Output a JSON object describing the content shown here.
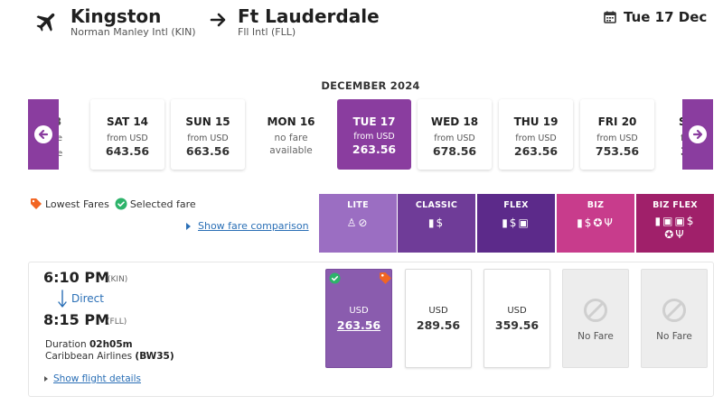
{
  "header": {
    "origin_city": "Kingston",
    "origin_airport": "Norman Manley Intl (KIN)",
    "dest_city": "Ft Lauderdale",
    "dest_airport": "Fll Intl (FLL)",
    "date": "Tue 17 Dec",
    "icons": {
      "plane": "plane-icon",
      "arrow": "arrow-right-icon",
      "calendar": "calendar-icon"
    }
  },
  "carousel": {
    "month": "DECEMBER 2024",
    "prev_partial": {
      "name": "3",
      "line": "e",
      "line2": "le"
    },
    "next_partial": {
      "name": "S",
      "line": "f",
      "line2": "3"
    },
    "days": [
      {
        "name": "SAT 14",
        "from": "from USD",
        "price": "643.56"
      },
      {
        "name": "SUN 15",
        "from": "from USD",
        "price": "663.56"
      },
      {
        "name": "MON 16",
        "nofare": "no fare",
        "nofare2": "available"
      },
      {
        "name": "TUE 17",
        "from": "from USD",
        "price": "263.56"
      },
      {
        "name": "WED 18",
        "from": "from USD",
        "price": "678.56"
      },
      {
        "name": "THU 19",
        "from": "from USD",
        "price": "263.56"
      },
      {
        "name": "FRI 20",
        "from": "from USD",
        "price": "753.56"
      }
    ]
  },
  "legend": {
    "lowest": "Lowest Fares",
    "selected": "Selected fare",
    "compare_link": "Show fare comparison"
  },
  "fare_types": [
    {
      "name": "LITE",
      "icons": "♙⊘"
    },
    {
      "name": "CLASSIC",
      "icons": "▮$"
    },
    {
      "name": "FLEX",
      "icons": "▮$▣"
    },
    {
      "name": "BIZ",
      "icons": "▮$✪Ψ"
    },
    {
      "name": "BIZ FLEX",
      "icons": "▮▣▣$",
      "icons2": "✪Ψ"
    }
  ],
  "flight": {
    "dep_time": "6:10 PM",
    "dep_code": "(KIN)",
    "direct": "Direct",
    "arr_time": "8:15 PM",
    "arr_code": "(FLL)",
    "duration_label": "Duration",
    "duration": "02h05m",
    "airline": "Caribbean Airlines",
    "flight_no": "(BW35)",
    "details_link": "Show flight details",
    "fares": [
      {
        "cur": "USD",
        "price": "263.56"
      },
      {
        "cur": "USD",
        "price": "289.56"
      },
      {
        "cur": "USD",
        "price": "359.56"
      },
      {
        "nofare": "No Fare"
      },
      {
        "nofare": "No Fare"
      }
    ]
  },
  "colors": {
    "accent": "#8a3d9f",
    "lite": "#9b6ec2",
    "classic": "#6f3c98",
    "flex": "#5c2a8a",
    "biz": "#c83c8c",
    "bizflex": "#a0206a",
    "link": "#2a6fb6",
    "lowest_tag": "#f26522",
    "selected_check": "#2db36a"
  }
}
